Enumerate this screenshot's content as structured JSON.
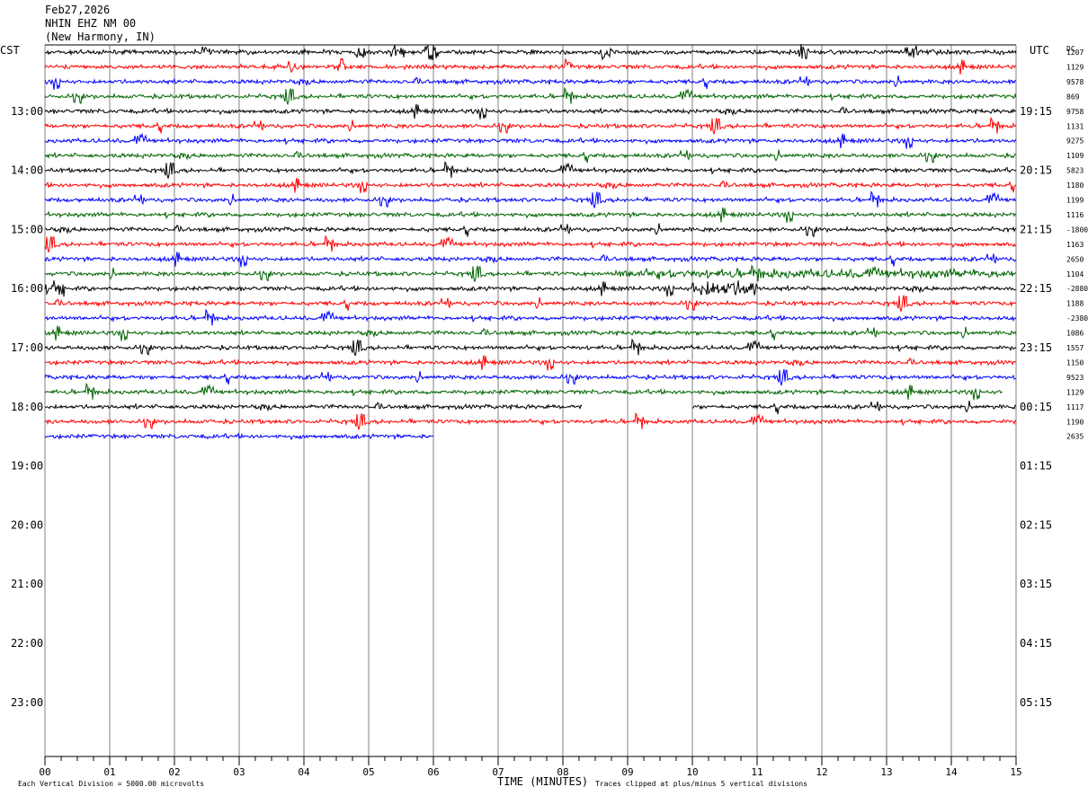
{
  "header": {
    "date": "Feb27,2026",
    "station": "NHIN EHZ NM 00",
    "location": "(New Harmony, IN)"
  },
  "left_tz": "CST",
  "right_tz": "UTC",
  "dc_label": "DC",
  "footer": {
    "scale_note": "Each Vertical Division = 5000.00 microvolts",
    "xlabel": "TIME (MINUTES)",
    "clip_note": "Traces clipped at plus/minus 5 vertical divisions"
  },
  "colors": {
    "trace": [
      "#000000",
      "#ff0000",
      "#0000ff",
      "#006400"
    ],
    "grid": "#808080"
  },
  "chart_data": {
    "type": "line",
    "title": "NHIN EHZ NM 00",
    "xlabel": "TIME (MINUTES)",
    "xlim": [
      0,
      15
    ],
    "x_ticks": [
      "00",
      "01",
      "02",
      "03",
      "04",
      "05",
      "06",
      "07",
      "08",
      "09",
      "10",
      "11",
      "12",
      "13",
      "14",
      "15"
    ],
    "left_labels": [
      "13:00",
      "14:00",
      "15:00",
      "16:00",
      "17:00",
      "18:00",
      "19:00",
      "20:00",
      "21:00",
      "22:00",
      "23:00"
    ],
    "right_labels": [
      "19:15",
      "20:15",
      "21:15",
      "22:15",
      "23:15",
      "00:15",
      "01:15",
      "02:15",
      "03:15",
      "04:15",
      "05:15"
    ],
    "dc_values": [
      "1207",
      "1129",
      "9578",
      "869",
      "9758",
      "1131",
      "9275",
      "1109",
      "5823",
      "1180",
      "1199",
      "1116",
      "-1800",
      "1163",
      "2650",
      "1104",
      "-2880",
      "1188",
      "-2380",
      "1086",
      "1557",
      "1150",
      "9523",
      "1129",
      "1117",
      "1190",
      "2635"
    ],
    "lines_per_hour": 4,
    "n_traces": 27,
    "grid_lines": 48,
    "trace_end_minute": [
      15,
      15,
      15,
      15,
      15,
      15,
      15,
      15,
      15,
      15,
      15,
      15,
      15,
      15,
      15,
      15,
      15,
      15,
      15,
      15,
      15,
      15,
      15,
      14.8,
      15,
      15,
      6.0
    ],
    "gaps": [
      {
        "trace": 24,
        "from_minute": 8.3,
        "to_minute": 10.0
      }
    ],
    "events": [
      {
        "trace": 15,
        "from_minute": 8.8,
        "to_minute": 15,
        "level": "elevated"
      },
      {
        "trace": 16,
        "from_minute": 10.0,
        "to_minute": 11.0,
        "level": "high"
      },
      {
        "trace": 16,
        "from_minute": 0.0,
        "to_minute": 0.3,
        "level": "high"
      }
    ],
    "grid": true
  }
}
